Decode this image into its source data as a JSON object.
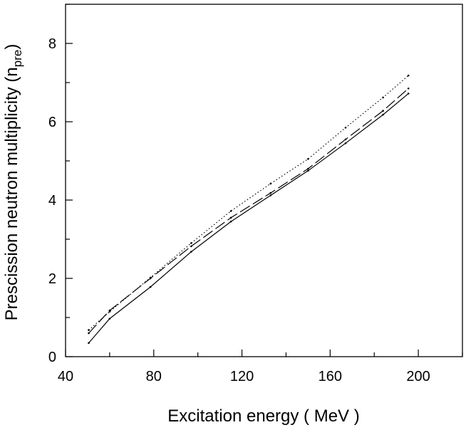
{
  "chart_data": {
    "type": "line",
    "title": "",
    "xlabel": "Excitation energy ( MeV )",
    "ylabel": {
      "prefix": "Prescission neutron multiplicity (n",
      "subscript": "pre",
      "suffix": ")"
    },
    "xlim": [
      40,
      220
    ],
    "ylim": [
      0,
      9
    ],
    "xticks": [
      40,
      80,
      120,
      160,
      200
    ],
    "yticks": [
      0,
      2,
      4,
      6,
      8
    ],
    "xminor": [
      60,
      100,
      140,
      180,
      220
    ],
    "yminor": [
      1,
      3,
      5,
      7,
      9
    ],
    "grid": false,
    "legend": "none",
    "series": [
      {
        "name": "solid",
        "style": "solid",
        "x": [
          50.5,
          60,
          78.5,
          97,
          115,
          133,
          150,
          167,
          184,
          195.5
        ],
        "y": [
          0.35,
          0.97,
          1.78,
          2.68,
          3.45,
          4.12,
          4.75,
          5.45,
          6.18,
          6.72
        ]
      },
      {
        "name": "dashed",
        "style": "dashed",
        "x": [
          50.5,
          60,
          78.5,
          97,
          115,
          133,
          150,
          167,
          184,
          195.5
        ],
        "y": [
          0.6,
          1.18,
          2.0,
          2.82,
          3.55,
          4.18,
          4.8,
          5.55,
          6.28,
          6.85
        ]
      },
      {
        "name": "dotted",
        "style": "dotted",
        "x": [
          50.5,
          60,
          78.5,
          97,
          115,
          133,
          150,
          167,
          184,
          195.5
        ],
        "y": [
          0.68,
          1.15,
          2.02,
          2.9,
          3.72,
          4.42,
          5.05,
          5.85,
          6.62,
          7.18
        ]
      }
    ]
  }
}
